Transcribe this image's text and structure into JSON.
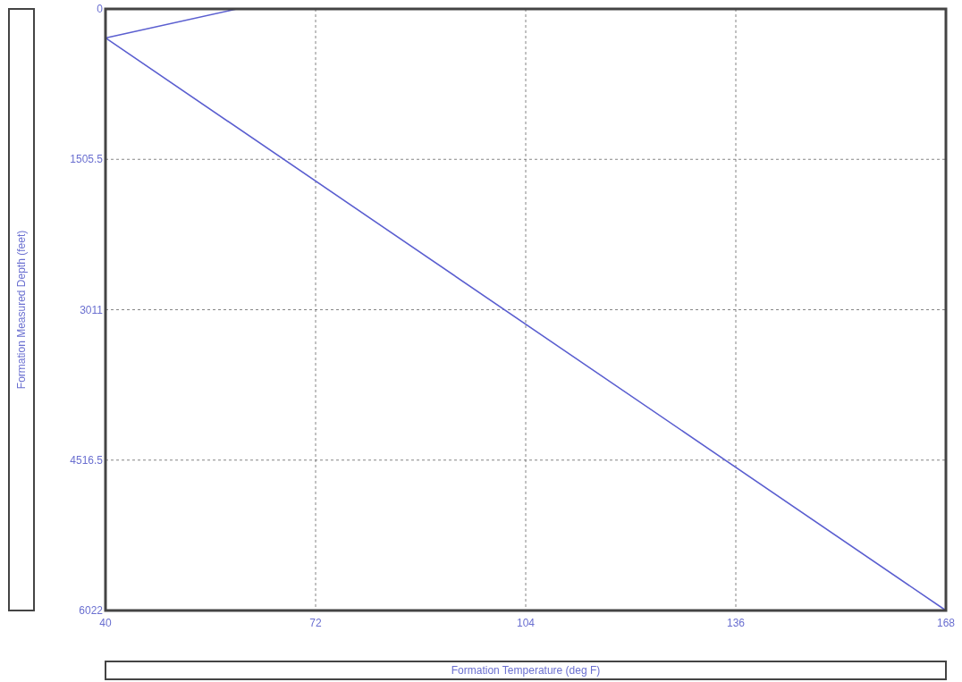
{
  "chart_data": {
    "type": "line",
    "xlabel": "Formation Temperature  (deg F)",
    "ylabel": "Formation Measured Depth  (feet)",
    "x": [
      60,
      40,
      168
    ],
    "series": [
      {
        "color": "#5b5fd0",
        "values": [
          0,
          290,
          6022
        ]
      }
    ],
    "xlim": [
      40,
      168
    ],
    "xticks": [
      40,
      72,
      104,
      136,
      168
    ],
    "ylim": [
      6022,
      0
    ],
    "yticks": [
      0,
      1505.5,
      3011,
      4516.5,
      6022
    ],
    "grid": true,
    "marker": "none",
    "line_style": "solid"
  }
}
